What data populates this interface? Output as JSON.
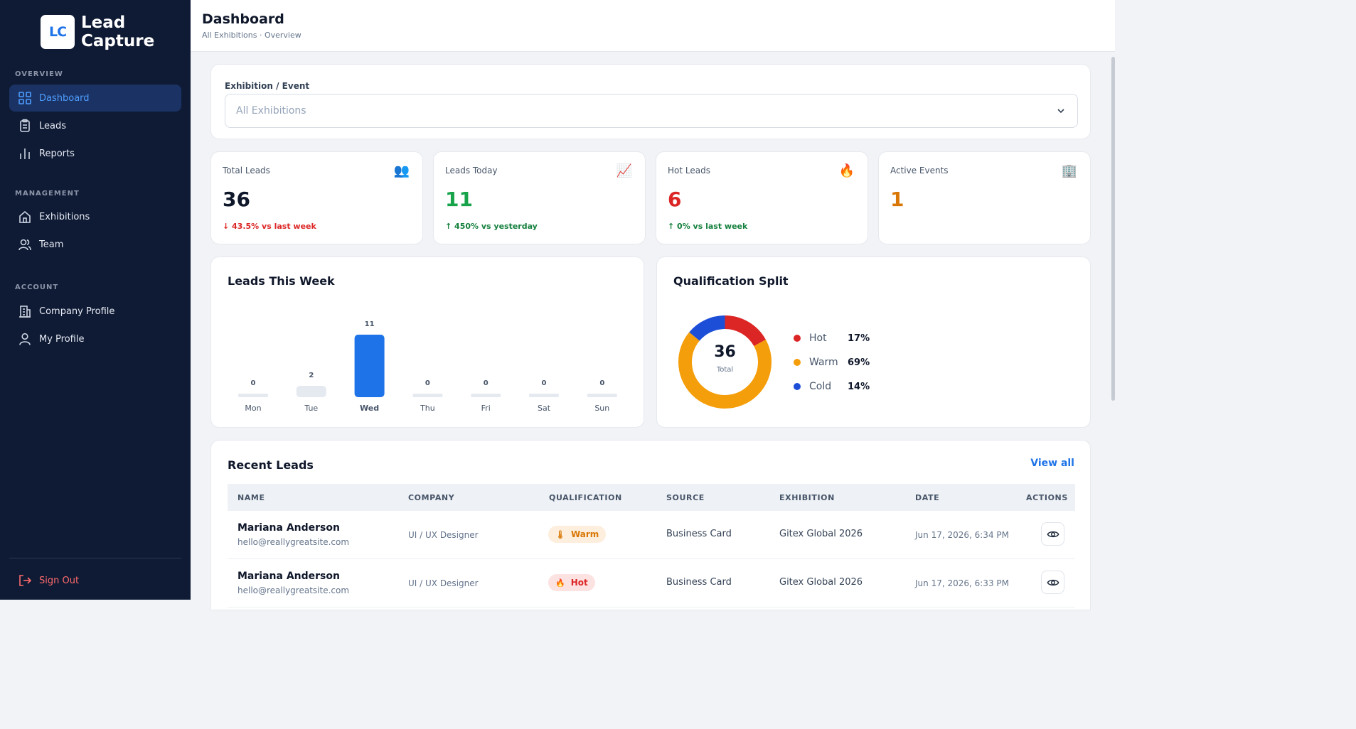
{
  "app": {
    "logo_mark": "LC",
    "logo_line1": "Lead",
    "logo_line2": "Capture"
  },
  "sidebar": {
    "overview_label": "OVERVIEW",
    "management_label": "MANAGEMENT",
    "account_label": "ACCOUNT",
    "items": [
      {
        "label": "Dashboard",
        "icon": "grid-icon",
        "active": true
      },
      {
        "label": "Leads",
        "icon": "clipboard-icon"
      },
      {
        "label": "Reports",
        "icon": "bar-chart-icon"
      },
      {
        "label": "Exhibitions",
        "icon": "home-icon"
      },
      {
        "label": "Team",
        "icon": "users-icon"
      },
      {
        "label": "Company Profile",
        "icon": "building-icon"
      },
      {
        "label": "My Profile",
        "icon": "user-icon"
      }
    ],
    "sign_out": "Sign Out"
  },
  "header": {
    "title": "Dashboard",
    "breadcrumb": "All Exhibitions · Overview"
  },
  "filter": {
    "label": "Exhibition / Event",
    "selected": "All Exhibitions"
  },
  "stats": [
    {
      "label": "Total Leads",
      "value": "36",
      "change": "43.5% vs last week",
      "direction": "down",
      "color": "#0f172a",
      "change_color": "#dc2626",
      "icon": "👥"
    },
    {
      "label": "Leads Today",
      "value": "11",
      "change": "450% vs yesterday",
      "direction": "up",
      "color": "#16a34a",
      "change_color": "#15803d",
      "icon": "📈"
    },
    {
      "label": "Hot Leads",
      "value": "6",
      "change": "0% vs last week",
      "direction": "up",
      "color": "#dc2626",
      "change_color": "#15803d",
      "icon": "🔥"
    },
    {
      "label": "Active Events",
      "value": "1",
      "change": "",
      "direction": "",
      "color": "#d97706",
      "change_color": "#15803d",
      "icon": "🏢"
    }
  ],
  "weekly": {
    "title": "Leads This Week",
    "highlight": "Wed",
    "highlight_color": "#1e73e8",
    "base_color": "#e5e9f0"
  },
  "chart_data": {
    "type": "bar",
    "categories": [
      "Mon",
      "Tue",
      "Wed",
      "Thu",
      "Fri",
      "Sat",
      "Sun"
    ],
    "values": [
      0,
      2,
      11,
      0,
      0,
      0,
      0
    ],
    "title": "Leads This Week"
  },
  "qualification": {
    "title": "Qualification Split",
    "total": "36",
    "total_label": "Total",
    "segments": [
      {
        "name": "Hot",
        "pct": "17%",
        "value": 17,
        "color": "#dc2626"
      },
      {
        "name": "Warm",
        "pct": "69%",
        "value": 69,
        "color": "#f59e0b"
      },
      {
        "name": "Cold",
        "pct": "14%",
        "value": 14,
        "color": "#1d4ed8"
      }
    ]
  },
  "recent": {
    "title": "Recent Leads",
    "view_all": "View all",
    "columns": [
      "NAME",
      "COMPANY",
      "QUALIFICATION",
      "SOURCE",
      "EXHIBITION",
      "DATE",
      "ACTIONS"
    ],
    "rows": [
      {
        "name": "Mariana Anderson",
        "email": "hello@reallygreatsite.com",
        "company": "UI / UX Designer",
        "qualification": "Warm",
        "qual_icon": "🌡",
        "source": "Business Card",
        "exhibition": "Gitex Global 2026",
        "date": "Jun 17, 2026, 6:34 PM"
      },
      {
        "name": "Mariana Anderson",
        "email": "hello@reallygreatsite.com",
        "company": "UI / UX Designer",
        "qualification": "Hot",
        "qual_icon": "🔥",
        "source": "Business Card",
        "exhibition": "Gitex Global 2026",
        "date": "Jun 17, 2026, 6:33 PM"
      }
    ]
  }
}
